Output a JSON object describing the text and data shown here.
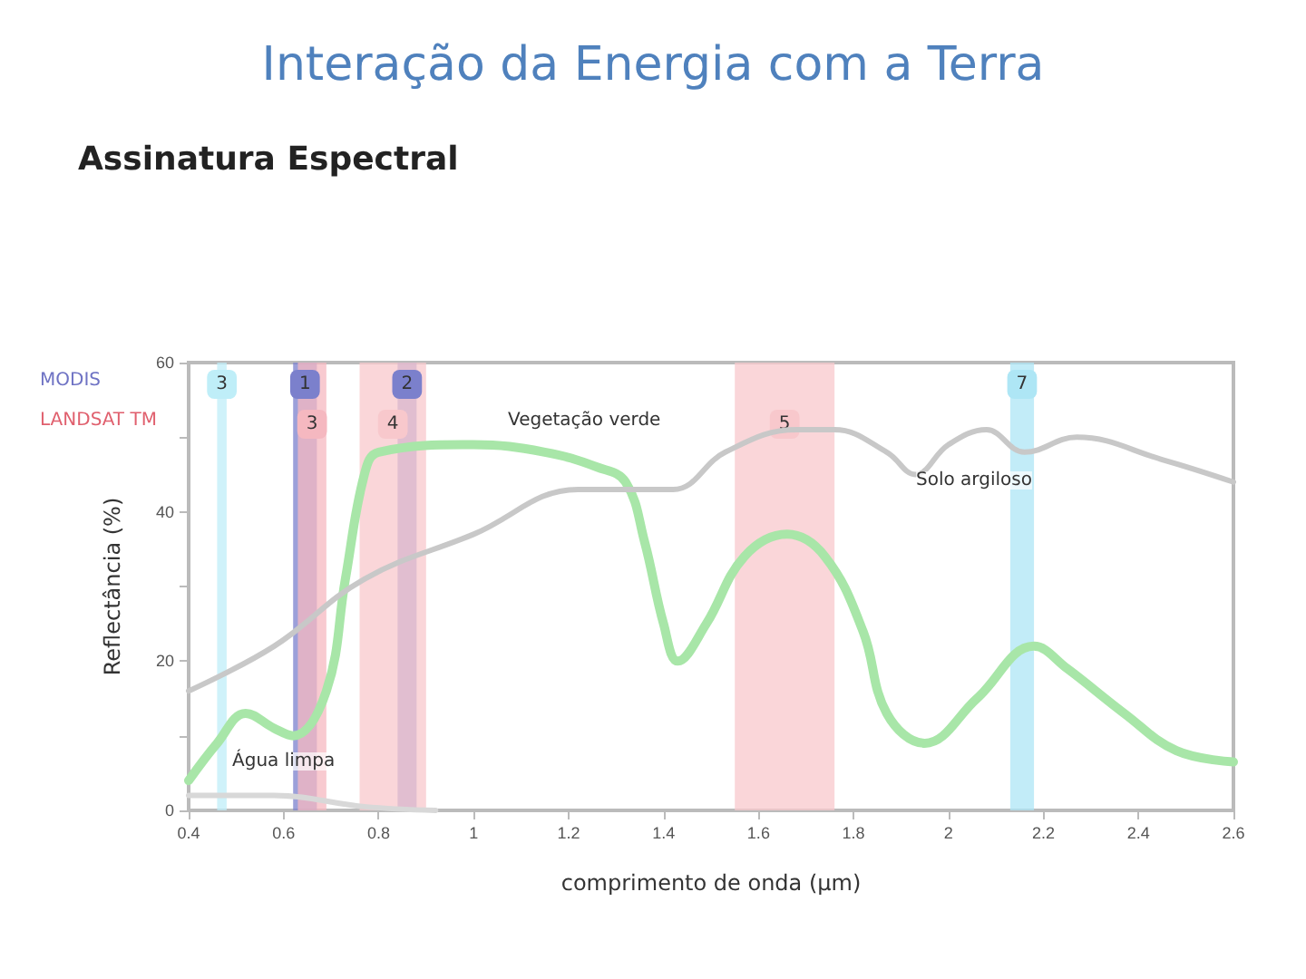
{
  "chart_data": {
    "type": "line",
    "title": "Interação da Energia com a Terra",
    "subtitle": "Assinatura Espectral",
    "xlabel": "comprimento de onda (µm)",
    "ylabel": "Reflectância (%)",
    "series": [
      {
        "color": "#a8e6a8",
        "x": [
          0.4,
          0.46,
          0.52,
          0.58,
          0.62,
          0.69,
          0.73,
          0.77,
          0.8,
          1.0,
          1.15,
          1.26,
          1.32,
          1.36,
          1.4,
          1.43,
          1.49,
          1.57,
          1.66,
          1.74,
          1.82,
          1.87,
          1.95,
          2.06,
          2.18,
          2.25,
          2.37,
          2.48,
          2.6
        ],
        "values": [
          4,
          9,
          13,
          11,
          10,
          16,
          31,
          45,
          48,
          49,
          48,
          46,
          44,
          36,
          25,
          20,
          25,
          34,
          37,
          34,
          24,
          13,
          9,
          15,
          22,
          19,
          13,
          8,
          6.5
        ]
      },
      {
        "color": "#c8c8c8",
        "x": [
          0.4,
          0.58,
          0.77,
          1.0,
          1.22,
          1.42,
          1.53,
          1.68,
          1.76,
          1.87,
          1.93,
          2.0,
          2.08,
          2.16,
          2.27,
          2.45,
          2.6
        ],
        "values": [
          16,
          22,
          31,
          37,
          43,
          43,
          48,
          51,
          51,
          48,
          45,
          49,
          51,
          48,
          50,
          47,
          44
        ]
      },
      {
        "color": "#d8d8d8",
        "x": [
          0.4,
          0.58,
          0.77,
          0.92
        ],
        "values": [
          2,
          2,
          0.5,
          0
        ]
      }
    ],
    "xlim": [
      0.4,
      2.6
    ],
    "xticks": [
      0.4,
      0.6,
      0.8,
      1.0,
      1.2,
      1.4,
      1.6,
      1.8,
      2.0,
      2.2,
      2.4,
      2.6
    ],
    "ylim": [
      0,
      60
    ],
    "yticks": [
      0,
      {
        "value": 10,
        "label": null
      },
      20,
      {
        "value": 30,
        "label": null
      },
      40,
      {
        "value": 50,
        "label": null
      },
      60
    ],
    "bands": [
      {
        "axis": "x",
        "from": 0.46,
        "to": 0.48,
        "label": "3",
        "color": "#bfeef8"
      },
      {
        "axis": "x",
        "from": 0.62,
        "to": 0.67,
        "label": "1",
        "color": "#7b80cc"
      },
      {
        "axis": "x",
        "from": 0.84,
        "to": 0.88,
        "label": "2",
        "color": "#7b80cc"
      },
      {
        "axis": "x",
        "from": 2.13,
        "to": 2.18,
        "label": "7",
        "color": "#aee6f5"
      },
      {
        "axis": "x",
        "from": 0.63,
        "to": 0.69,
        "label": "3",
        "color": "#f5b8c0"
      },
      {
        "axis": "x",
        "from": 0.76,
        "to": 0.9,
        "label": "4",
        "color": "#f8c8cc"
      },
      {
        "axis": "x",
        "from": 1.55,
        "to": 1.76,
        "label": "5",
        "color": "#f8c8cc"
      }
    ],
    "annotations": [
      "MODIS",
      "LANDSAT TM",
      "Vegetação verde",
      "Solo argiloso",
      "Água limpa"
    ],
    "grid": false,
    "marker": "none",
    "line_style": "solid"
  }
}
